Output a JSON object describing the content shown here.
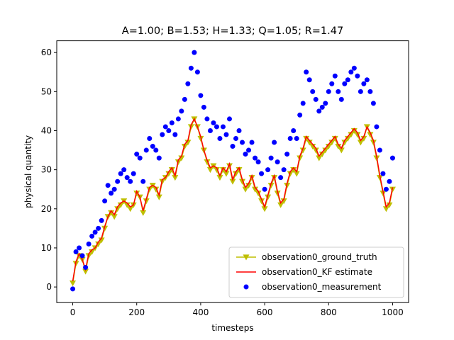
{
  "chart_data": {
    "type": "line",
    "title": "A=1.00; B=1.53; H=1.33; Q=1.05; R=1.47",
    "xlabel": "timesteps",
    "ylabel": "physical quantity",
    "xlim": [
      -50,
      1050
    ],
    "ylim": [
      -4,
      63
    ],
    "xticks": [
      0,
      200,
      400,
      600,
      800,
      1000
    ],
    "yticks": [
      0,
      10,
      20,
      30,
      40,
      50,
      60
    ],
    "legend_position": "lower right",
    "grid": false,
    "series": [
      {
        "name": "observation0_ground_truth",
        "kind": "line+triangle-down-markers",
        "color": "#bfbf00",
        "x": [
          0,
          10,
          20,
          30,
          40,
          50,
          60,
          70,
          80,
          90,
          100,
          110,
          120,
          130,
          140,
          150,
          160,
          170,
          180,
          190,
          200,
          210,
          220,
          230,
          240,
          250,
          260,
          270,
          280,
          290,
          300,
          310,
          320,
          330,
          340,
          350,
          360,
          370,
          380,
          390,
          400,
          410,
          420,
          430,
          440,
          450,
          460,
          470,
          480,
          490,
          500,
          510,
          520,
          530,
          540,
          550,
          560,
          570,
          580,
          590,
          600,
          610,
          620,
          630,
          640,
          650,
          660,
          670,
          680,
          690,
          700,
          710,
          720,
          730,
          740,
          750,
          760,
          770,
          780,
          790,
          800,
          810,
          820,
          830,
          840,
          850,
          860,
          870,
          880,
          890,
          900,
          910,
          920,
          930,
          940,
          950,
          960,
          970,
          980,
          990,
          1000
        ],
        "values": [
          1,
          6,
          8,
          7,
          4,
          8,
          9,
          10,
          11,
          12,
          15,
          18,
          19,
          18,
          20,
          21,
          22,
          21,
          20,
          21,
          24,
          23,
          19,
          22,
          25,
          26,
          25,
          23,
          27,
          28,
          29,
          30,
          28,
          32,
          33,
          36,
          37,
          41,
          43,
          41,
          38,
          35,
          32,
          30,
          31,
          30,
          28,
          30,
          29,
          31,
          27,
          29,
          30,
          27,
          25,
          26,
          28,
          25,
          24,
          22,
          20,
          23,
          26,
          28,
          24,
          21,
          22,
          26,
          29,
          30,
          29,
          33,
          35,
          38,
          37,
          36,
          35,
          33,
          34,
          35,
          36,
          37,
          38,
          36,
          35,
          37,
          38,
          39,
          40,
          39,
          37,
          38,
          41,
          39,
          37,
          33,
          28,
          24,
          20,
          21,
          25
        ]
      },
      {
        "name": "observation0_KF estimate",
        "kind": "line",
        "color": "#ff0000",
        "x": [
          0,
          10,
          20,
          30,
          40,
          50,
          60,
          70,
          80,
          90,
          100,
          110,
          120,
          130,
          140,
          150,
          160,
          170,
          180,
          190,
          200,
          210,
          220,
          230,
          240,
          250,
          260,
          270,
          280,
          290,
          300,
          310,
          320,
          330,
          340,
          350,
          360,
          370,
          380,
          390,
          400,
          410,
          420,
          430,
          440,
          450,
          460,
          470,
          480,
          490,
          500,
          510,
          520,
          530,
          540,
          550,
          560,
          570,
          580,
          590,
          600,
          610,
          620,
          630,
          640,
          650,
          660,
          670,
          680,
          690,
          700,
          710,
          720,
          730,
          740,
          750,
          760,
          770,
          780,
          790,
          800,
          810,
          820,
          830,
          840,
          850,
          860,
          870,
          880,
          890,
          900,
          910,
          920,
          930,
          940,
          950,
          960,
          970,
          980,
          990,
          1000
        ],
        "values": [
          1.5,
          6.5,
          8.5,
          7,
          4.5,
          8.5,
          9.5,
          10,
          11.5,
          12.5,
          15.5,
          18,
          19.5,
          18.5,
          20.5,
          21.5,
          22,
          21.5,
          20.5,
          21,
          24.5,
          23,
          19.5,
          22.5,
          25.5,
          26,
          25.5,
          23.5,
          27.5,
          28,
          29.5,
          30.5,
          28.5,
          32.5,
          33.5,
          36.5,
          37.5,
          41.5,
          43,
          41,
          38.5,
          35,
          32.5,
          30.5,
          31,
          30.5,
          28.5,
          30.5,
          29.5,
          31.5,
          27.5,
          29.5,
          30.5,
          27.5,
          25.5,
          26.5,
          28.5,
          25.5,
          24.5,
          22.5,
          20.5,
          23.5,
          26.5,
          28.5,
          24.5,
          21.5,
          22.5,
          26.5,
          29.5,
          30.5,
          29.5,
          33.5,
          35.5,
          38.5,
          37.5,
          36.5,
          35.5,
          33.5,
          34.5,
          35.5,
          36.5,
          37.5,
          38.5,
          36.5,
          35.5,
          37.5,
          38.5,
          39.5,
          40.5,
          39.5,
          37.5,
          38.5,
          41,
          39.5,
          37.5,
          33.5,
          28.5,
          24.5,
          20.5,
          21.5,
          25.5
        ]
      },
      {
        "name": "observation0_measurement",
        "kind": "scatter",
        "color": "#0000ff",
        "x": [
          0,
          10,
          20,
          30,
          40,
          50,
          60,
          70,
          80,
          90,
          100,
          110,
          120,
          130,
          140,
          150,
          160,
          170,
          180,
          190,
          200,
          210,
          220,
          230,
          240,
          250,
          260,
          270,
          280,
          290,
          300,
          310,
          320,
          330,
          340,
          350,
          360,
          370,
          380,
          390,
          400,
          410,
          420,
          430,
          440,
          450,
          460,
          470,
          480,
          490,
          500,
          510,
          520,
          530,
          540,
          550,
          560,
          570,
          580,
          590,
          600,
          610,
          620,
          630,
          640,
          650,
          660,
          670,
          680,
          690,
          700,
          710,
          720,
          730,
          740,
          750,
          760,
          770,
          780,
          790,
          800,
          810,
          820,
          830,
          840,
          850,
          860,
          870,
          880,
          890,
          900,
          910,
          920,
          930,
          940,
          950,
          960,
          970,
          980,
          990,
          1000
        ],
        "values": [
          -0.5,
          9,
          10,
          8,
          5,
          11,
          13,
          14,
          15,
          17,
          22,
          26,
          24,
          25,
          27,
          29,
          30,
          28,
          27,
          29,
          34,
          33,
          27,
          35,
          38,
          36,
          35,
          33,
          39,
          41,
          40,
          42,
          39,
          43,
          45,
          48,
          52,
          56,
          60,
          55,
          49,
          46,
          43,
          40,
          42,
          41,
          38,
          41,
          39,
          43,
          36,
          38,
          40,
          37,
          34,
          35,
          37,
          33,
          32,
          29,
          25,
          30,
          33,
          37,
          32,
          28,
          30,
          34,
          38,
          40,
          38,
          44,
          47,
          55,
          53,
          50,
          48,
          45,
          46,
          47,
          50,
          52,
          54,
          50,
          48,
          52,
          53,
          55,
          56,
          54,
          50,
          52,
          53,
          50,
          47,
          41,
          35,
          29,
          25,
          27,
          33
        ]
      }
    ]
  }
}
